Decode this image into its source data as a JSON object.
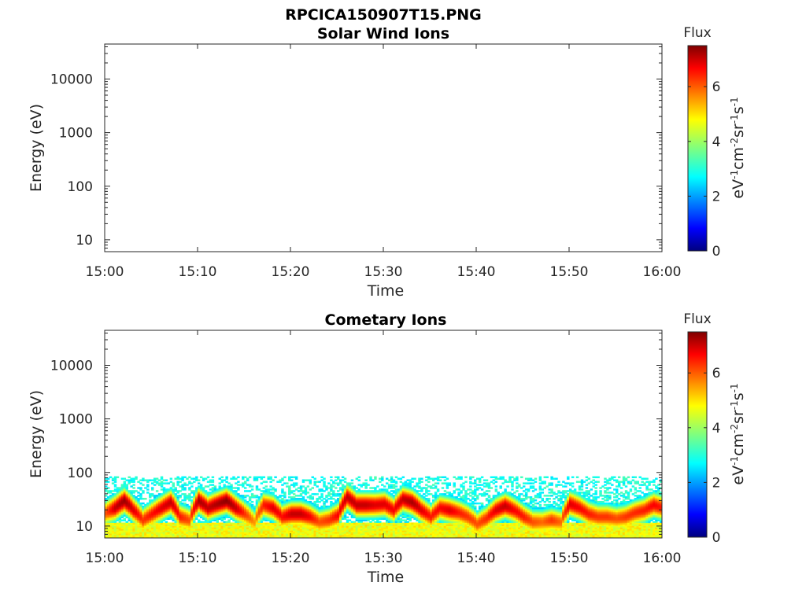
{
  "figure": {
    "title": "RPCICA150907T15.PNG"
  },
  "chart_data": [
    {
      "type": "heatmap",
      "title": "Solar Wind Ions",
      "xlabel": "Time",
      "ylabel": "Energy (eV)",
      "x_ticks": [
        "15:00",
        "15:10",
        "15:20",
        "15:30",
        "15:40",
        "15:50",
        "16:00"
      ],
      "x_range": [
        "15:00",
        "16:00"
      ],
      "y_scale": "log",
      "y_ticks": [
        "10",
        "100",
        "1000",
        "10000"
      ],
      "y_tick_values": [
        10,
        100,
        1000,
        10000
      ],
      "y_range": [
        6,
        45000
      ],
      "colorbar": {
        "title": "Flux",
        "label": "eV-1cm-2sr-1s-1",
        "ticks": [
          "0",
          "2",
          "4",
          "6"
        ],
        "range": [
          0,
          7.5
        ],
        "colormap": "jet"
      },
      "data": []
    },
    {
      "type": "heatmap",
      "title": "Cometary Ions",
      "xlabel": "Time",
      "ylabel": "Energy (eV)",
      "x_ticks": [
        "15:00",
        "15:10",
        "15:20",
        "15:30",
        "15:40",
        "15:50",
        "16:00"
      ],
      "x_range": [
        "15:00",
        "16:00"
      ],
      "y_scale": "log",
      "y_ticks": [
        "10",
        "100",
        "1000",
        "10000"
      ],
      "y_tick_values": [
        10,
        100,
        1000,
        10000
      ],
      "y_range": [
        6,
        45000
      ],
      "colorbar": {
        "title": "Flux",
        "label": "eV-1cm-2sr-1s-1",
        "ticks": [
          "0",
          "2",
          "4",
          "6"
        ],
        "range": [
          0,
          7.5
        ],
        "colormap": "jet"
      },
      "data_description_points": {
        "time_minutes": [
          0,
          1,
          2,
          3,
          4,
          5,
          6,
          7,
          8,
          9,
          10,
          11,
          12,
          13,
          14,
          15,
          16,
          17,
          18,
          19,
          20,
          21,
          22,
          23,
          24,
          25,
          26,
          27,
          28,
          29,
          30,
          31,
          32,
          33,
          34,
          35,
          36,
          37,
          38,
          39,
          40,
          41,
          42,
          43,
          44,
          45,
          46,
          47,
          48,
          49,
          50,
          51,
          52,
          53,
          54,
          55,
          56,
          57,
          58,
          59,
          60
        ],
        "peak_energy_eV": [
          18,
          22,
          30,
          20,
          13,
          17,
          22,
          28,
          15,
          13,
          30,
          22,
          26,
          30,
          22,
          17,
          12,
          25,
          22,
          15,
          17,
          17,
          15,
          12,
          13,
          16,
          35,
          25,
          25,
          25,
          26,
          20,
          32,
          28,
          20,
          15,
          22,
          20,
          18,
          15,
          11,
          14,
          20,
          24,
          20,
          15,
          12,
          12,
          13,
          12,
          26,
          22,
          17,
          15,
          15,
          14,
          15,
          18,
          20,
          25,
          22
        ],
        "peak_flux": [
          6,
          7,
          7.3,
          6.8,
          6.2,
          6.5,
          6.8,
          7,
          6.4,
          6,
          7.2,
          7,
          7.2,
          7.4,
          7,
          6.2,
          5.5,
          6.4,
          6.8,
          6.5,
          7,
          7,
          6.6,
          6,
          6.2,
          6.6,
          7,
          7,
          7,
          6.8,
          6.8,
          6.6,
          7,
          7.2,
          6.8,
          6.4,
          6.6,
          6.8,
          6.4,
          6.2,
          6,
          6.3,
          6.8,
          7,
          6.6,
          6.4,
          6,
          5.8,
          6.2,
          5.8,
          6.8,
          6.6,
          6.4,
          6.2,
          6.2,
          6,
          6.2,
          6.3,
          6.4,
          6.6,
          6.4
        ]
      }
    }
  ]
}
